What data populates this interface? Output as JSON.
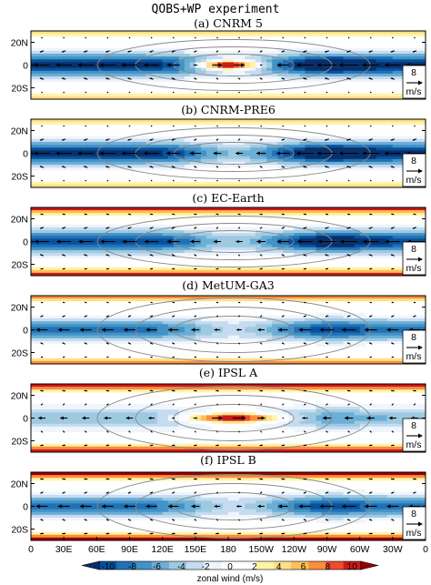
{
  "figure_title": "QOBS+WP experiment",
  "chart_data": {
    "type": "heatmap",
    "title": "QOBS+WP experiment",
    "quantity": "zonal wind (m/s)",
    "lon_ticks": [
      "0",
      "30E",
      "60E",
      "90E",
      "120E",
      "150E",
      "180",
      "150W",
      "120W",
      "90W",
      "60W",
      "30W",
      "0"
    ],
    "lat_ticks": [
      "20N",
      "0",
      "20S"
    ],
    "lat_range": [
      -30,
      30
    ],
    "lon_range": [
      0,
      360
    ],
    "reference_vector": {
      "value": "8",
      "unit": "m/s"
    },
    "colorbar": {
      "label": "zonal wind (m/s)",
      "ticks": [
        "-10",
        "-8",
        "-6",
        "-4",
        "-2",
        "0",
        "2",
        "4",
        "6",
        "8",
        "10"
      ],
      "colors": [
        "#08306b",
        "#08519c",
        "#2171b5",
        "#4292c6",
        "#6baed6",
        "#9ecae1",
        "#c6dbef",
        "#eef5fc",
        "#ffffff",
        "#ffffff",
        "#fff4a8",
        "#fee08b",
        "#fdbf57",
        "#fc8d3c",
        "#ef4b2a",
        "#cc1a1a",
        "#990000"
      ]
    },
    "panels": [
      {
        "title": "(a) CNRM 5",
        "equatorial_jet": "westerly",
        "jet_lon": [
          150,
          210
        ],
        "jet_peak": 9,
        "trade_strength": -11
      },
      {
        "title": "(b) CNRM-PRE6",
        "equatorial_jet": "none",
        "trade_strength": -11
      },
      {
        "title": "(c) EC-Earth",
        "equatorial_jet": "none",
        "trade_strength": -10,
        "offequatorial_westerlies": 8
      },
      {
        "title": "(d) MetUM-GA3",
        "equatorial_jet": "weak",
        "trade_strength": -8,
        "offequatorial_westerlies": 6
      },
      {
        "title": "(e) IPSL A",
        "equatorial_jet": "westerly",
        "jet_lon": [
          140,
          230
        ],
        "jet_peak": 9,
        "trade_strength": -5,
        "offequatorial_westerlies": 9
      },
      {
        "title": "(f) IPSL B",
        "equatorial_jet": "weak",
        "trade_strength": -8,
        "offequatorial_westerlies": 10
      }
    ]
  }
}
